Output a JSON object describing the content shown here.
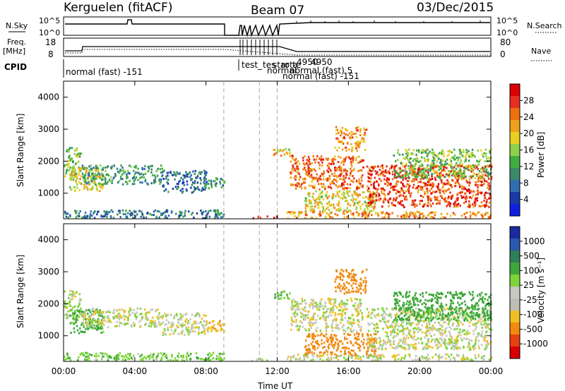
{
  "header": {
    "station": "Kerguelen (fitACF)",
    "beam": "Beam 07",
    "date": "03/Dec/2015"
  },
  "params": {
    "nsky_label": "N.Sky",
    "nsky_ticks": [
      "10^5",
      "10^0"
    ],
    "nsearch_label": "N.Search",
    "freq_label": "Freq.",
    "freq_unit": "[MHz]",
    "freq_ticks": [
      "18",
      "8"
    ],
    "nave_label": "Nave",
    "nave_ticks": [
      "80",
      "0"
    ],
    "cpid_label": "CPID",
    "cpid_labels": [
      "normal (fast) -151",
      "test_",
      "tes",
      "star",
      "rota",
      "te",
      "4950",
      "4950",
      "normal",
      "normal (fast) 5",
      "normal (fast) -151"
    ]
  },
  "colors": {
    "power_scale": [
      "#1020e0",
      "#1a3aa8",
      "#2f6db0",
      "#3a8a6a",
      "#3fae3f",
      "#8fd14a",
      "#e8d020",
      "#f0a020",
      "#f07010",
      "#e83020",
      "#dc0000"
    ],
    "velocity_scale": [
      "#1a2aa0",
      "#2a58b0",
      "#2f7f5a",
      "#3ea83a",
      "#7ed43a",
      "#c8c8c0",
      "#bebeb6",
      "#f0c020",
      "#f08a10",
      "#e84010",
      "#d80000"
    ]
  },
  "chart_data": [
    {
      "type": "heatmap",
      "title": "Power",
      "xlabel": "Time UT",
      "ylabel": "Slant Range [km]",
      "x_ticks": [
        "00:00",
        "04:00",
        "08:00",
        "12:00",
        "16:00",
        "20:00",
        "00:00"
      ],
      "xlim": [
        0,
        24
      ],
      "y_ticks": [
        "1000",
        "2000",
        "3000",
        "4000"
      ],
      "ylim": [
        200,
        4500
      ],
      "colorbar": {
        "label": "Power [dB]",
        "ticks": [
          "4",
          "8",
          "12",
          "16",
          "20",
          "24",
          "28"
        ],
        "range": [
          0,
          30
        ]
      },
      "regions": [
        {
          "t": [
            0.0,
            1.0
          ],
          "r": [
            1550,
            2450
          ],
          "level": 14
        },
        {
          "t": [
            0.3,
            2.2
          ],
          "r": [
            1100,
            1850
          ],
          "level": 18
        },
        {
          "t": [
            1.0,
            5.5
          ],
          "r": [
            1300,
            1900
          ],
          "level": 10
        },
        {
          "t": [
            5.5,
            8.0
          ],
          "r": [
            1050,
            1750
          ],
          "level": 6
        },
        {
          "t": [
            7.8,
            9.0
          ],
          "r": [
            1150,
            1500
          ],
          "level": 9
        },
        {
          "t": [
            0.0,
            9.0
          ],
          "r": [
            250,
            500
          ],
          "level": 7
        },
        {
          "t": [
            11.7,
            12.7
          ],
          "r": [
            2180,
            2420
          ],
          "level": 18
        },
        {
          "t": [
            12.7,
            16.8
          ],
          "r": [
            1150,
            2200
          ],
          "level": 24
        },
        {
          "t": [
            15.2,
            17.0
          ],
          "r": [
            2350,
            3100
          ],
          "level": 22
        },
        {
          "t": [
            13.5,
            17.5
          ],
          "r": [
            400,
            1100
          ],
          "level": 18
        },
        {
          "t": [
            17.0,
            24.0
          ],
          "r": [
            600,
            1900
          ],
          "level": 26
        },
        {
          "t": [
            18.5,
            24.0
          ],
          "r": [
            1500,
            2400
          ],
          "level": 14
        },
        {
          "t": [
            12.5,
            24.0
          ],
          "r": [
            250,
            450
          ],
          "level": 22
        },
        {
          "t": [
            10.5,
            12.0
          ],
          "r": [
            250,
            320
          ],
          "level": 28
        }
      ]
    },
    {
      "type": "heatmap",
      "title": "Velocity",
      "xlabel": "Time UT",
      "ylabel": "Slant Range [km]",
      "x_ticks": [
        "00:00",
        "04:00",
        "08:00",
        "12:00",
        "16:00",
        "20:00",
        "00:00"
      ],
      "xlim": [
        0,
        24
      ],
      "y_ticks": [
        "1000",
        "2000",
        "3000",
        "4000"
      ],
      "ylim": [
        200,
        4500
      ],
      "colorbar": {
        "label": "Velocity [m s⁻¹]",
        "ticks": [
          "1000",
          "500",
          "100",
          "25",
          "-25",
          "-100",
          "-500",
          "-1000"
        ],
        "range": [
          -1200,
          1200
        ]
      },
      "regions": [
        {
          "t": [
            0.0,
            1.0
          ],
          "r": [
            1550,
            2450
          ],
          "level": 30
        },
        {
          "t": [
            0.3,
            2.2
          ],
          "r": [
            1100,
            1850
          ],
          "level": 150
        },
        {
          "t": [
            1.0,
            5.5
          ],
          "r": [
            1300,
            1900
          ],
          "level": 0
        },
        {
          "t": [
            5.5,
            8.0
          ],
          "r": [
            1050,
            1750
          ],
          "level": 0
        },
        {
          "t": [
            7.8,
            9.0
          ],
          "r": [
            1150,
            1500
          ],
          "level": -60
        },
        {
          "t": [
            0.0,
            9.0
          ],
          "r": [
            250,
            500
          ],
          "level": 80
        },
        {
          "t": [
            11.7,
            12.7
          ],
          "r": [
            2180,
            2420
          ],
          "level": 120
        },
        {
          "t": [
            12.7,
            16.8
          ],
          "r": [
            1150,
            2200
          ],
          "level": 0
        },
        {
          "t": [
            15.2,
            17.0
          ],
          "r": [
            2350,
            3100
          ],
          "level": -300
        },
        {
          "t": [
            13.5,
            17.5
          ],
          "r": [
            400,
            1100
          ],
          "level": -200
        },
        {
          "t": [
            17.0,
            24.0
          ],
          "r": [
            600,
            1900
          ],
          "level": 10
        },
        {
          "t": [
            18.5,
            24.0
          ],
          "r": [
            1500,
            2400
          ],
          "level": 200
        },
        {
          "t": [
            12.5,
            24.0
          ],
          "r": [
            250,
            450
          ],
          "level": 0
        },
        {
          "t": [
            10.5,
            12.0
          ],
          "r": [
            250,
            320
          ],
          "level": 0
        }
      ]
    }
  ]
}
